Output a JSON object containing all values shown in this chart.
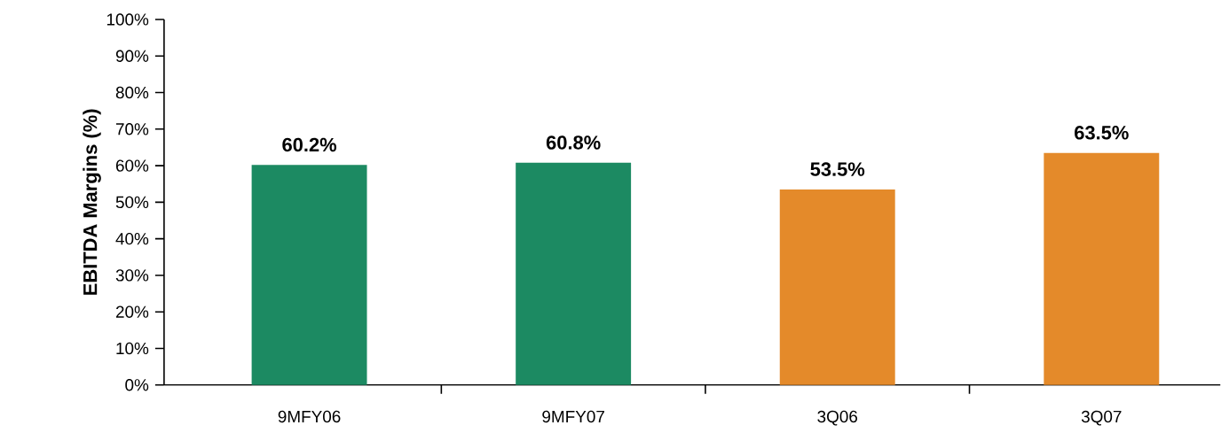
{
  "chart_data": {
    "type": "bar",
    "ylabel": "EBITDA Margins (%)",
    "categories": [
      "9MFY06",
      "9MFY07",
      "3Q06",
      "3Q07"
    ],
    "values": [
      60.2,
      60.8,
      53.5,
      63.5
    ],
    "value_labels": [
      "60.2%",
      "60.8%",
      "53.5%",
      "63.5%"
    ],
    "colors": [
      "#1c8a62",
      "#1c8a62",
      "#e48a2a",
      "#e48a2a"
    ],
    "ylim": [
      0,
      100
    ],
    "yticks": [
      {
        "value": 0,
        "label": "0%"
      },
      {
        "value": 10,
        "label": "10%"
      },
      {
        "value": 20,
        "label": "20%"
      },
      {
        "value": 30,
        "label": "30%"
      },
      {
        "value": 40,
        "label": "40%"
      },
      {
        "value": 50,
        "label": "50%"
      },
      {
        "value": 60,
        "label": "60%"
      },
      {
        "value": 70,
        "label": "70%"
      },
      {
        "value": 80,
        "label": "80%"
      },
      {
        "value": 90,
        "label": "90%"
      },
      {
        "value": 100,
        "label": "100%"
      }
    ],
    "grid": false
  }
}
